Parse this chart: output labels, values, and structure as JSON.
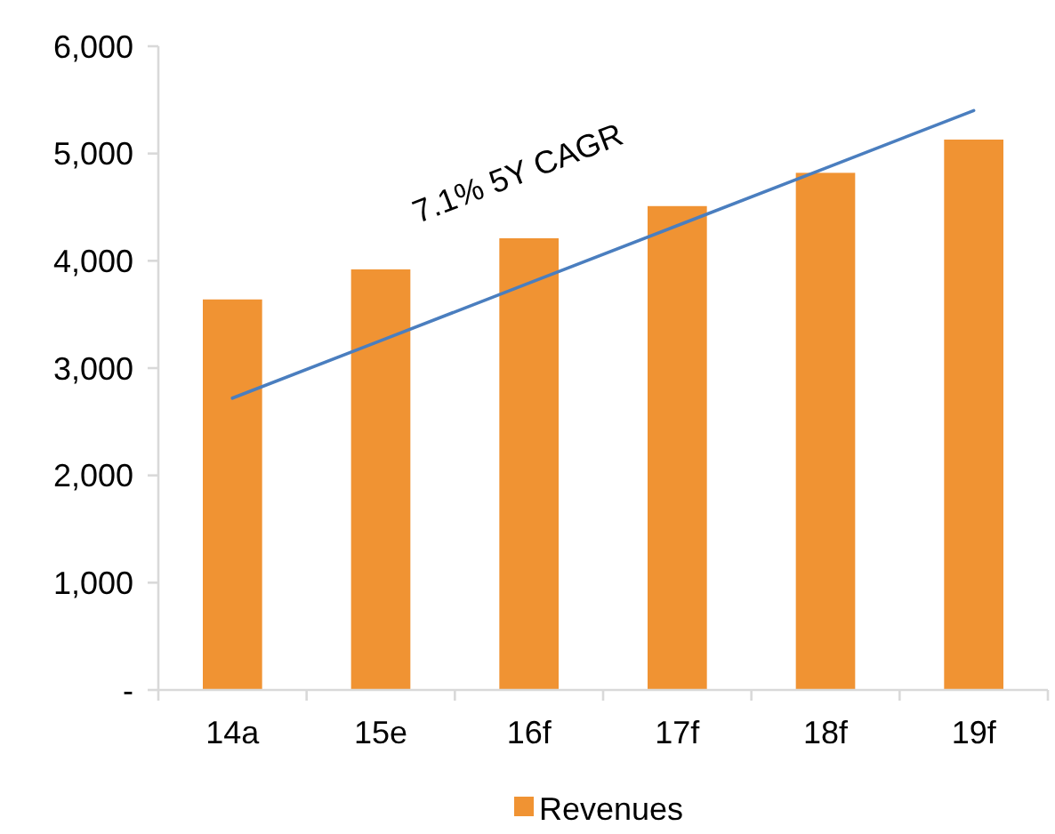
{
  "chart_data": {
    "type": "bar",
    "categories": [
      "14a",
      "15e",
      "16f",
      "17f",
      "18f",
      "19f"
    ],
    "series": [
      {
        "name": "Revenues",
        "color": "#f09333",
        "values": [
          3640,
          3920,
          4210,
          4510,
          4820,
          5130
        ]
      },
      {
        "type": "line",
        "color": "#4a7ebf",
        "values": [
          2720,
          3256,
          3792,
          4328,
          4864,
          5400
        ]
      }
    ],
    "ylim": [
      0,
      6000
    ],
    "yticks": [
      {
        "value": 0,
        "label": "-"
      },
      {
        "value": 1000,
        "label": "1,000"
      },
      {
        "value": 2000,
        "label": "2,000"
      },
      {
        "value": 3000,
        "label": "3,000"
      },
      {
        "value": 4000,
        "label": "4,000"
      },
      {
        "value": 5000,
        "label": "5,000"
      },
      {
        "value": 6000,
        "label": "6,000"
      }
    ],
    "annotations": [
      "7.1% 5Y CAGR"
    ],
    "legend": "bottom",
    "grid": false
  }
}
